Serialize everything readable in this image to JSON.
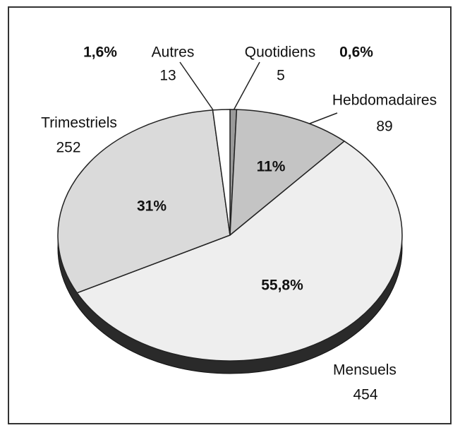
{
  "chart_data": {
    "type": "pie",
    "categories": [
      "Quotidiens",
      "Hebdomadaires",
      "Mensuels",
      "Trimestriels",
      "Autres"
    ],
    "values": [
      5,
      89,
      454,
      252,
      13
    ],
    "percent_labels": [
      "0,6%",
      "11%",
      "55,8%",
      "31%",
      "1,6%"
    ],
    "colors": [
      "#9a9a9a",
      "#c4c4c4",
      "#eeeeee",
      "#dadada",
      "#ffffff"
    ]
  }
}
